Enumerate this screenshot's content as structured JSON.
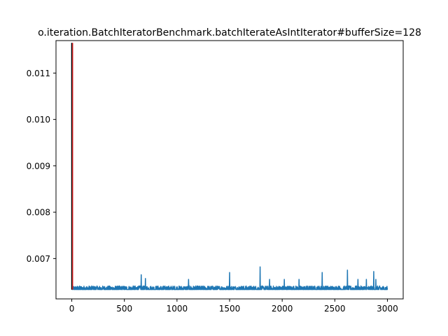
{
  "chart_data": {
    "type": "line",
    "title": "o.iteration.BatchIteratorBenchmark.batchIterateAsIntIterator#bufferSize=128",
    "xlabel": "",
    "ylabel": "",
    "xlim": [
      -150,
      3150
    ],
    "ylim": [
      0.00613,
      0.0117
    ],
    "x_ticks": [
      0,
      500,
      1000,
      1500,
      2000,
      2500,
      3000
    ],
    "x_tick_labels": [
      "0",
      "500",
      "1000",
      "1500",
      "2000",
      "2500",
      "3000"
    ],
    "y_ticks": [
      0.007,
      0.008,
      0.009,
      0.01,
      0.011
    ],
    "y_tick_labels": [
      "0.007",
      "0.008",
      "0.009",
      "0.010",
      "0.011"
    ],
    "grid": false,
    "series": [
      {
        "color": "#1f77b4",
        "baseline": 0.00635,
        "noise_amplitude": 6e-05,
        "x_start": 0,
        "x_end": 3000,
        "spikes": [
          {
            "x": 0,
            "y": 0.01165
          },
          {
            "x": 660,
            "y": 0.00665
          },
          {
            "x": 700,
            "y": 0.00657
          },
          {
            "x": 1110,
            "y": 0.00655
          },
          {
            "x": 1500,
            "y": 0.0067
          },
          {
            "x": 1790,
            "y": 0.00682
          },
          {
            "x": 1880,
            "y": 0.00655
          },
          {
            "x": 2020,
            "y": 0.00655
          },
          {
            "x": 2160,
            "y": 0.00655
          },
          {
            "x": 2380,
            "y": 0.0067
          },
          {
            "x": 2620,
            "y": 0.00675
          },
          {
            "x": 2720,
            "y": 0.00655
          },
          {
            "x": 2800,
            "y": 0.00655
          },
          {
            "x": 2870,
            "y": 0.00672
          },
          {
            "x": 2890,
            "y": 0.00655
          }
        ]
      }
    ],
    "markers": [
      {
        "color": "#000000",
        "x": 0,
        "y_from": 0.00633,
        "y_to": 0.01165
      },
      {
        "color": "#d62728",
        "x": 8,
        "y_from": 0.00633,
        "y_to": 0.01165
      }
    ]
  }
}
